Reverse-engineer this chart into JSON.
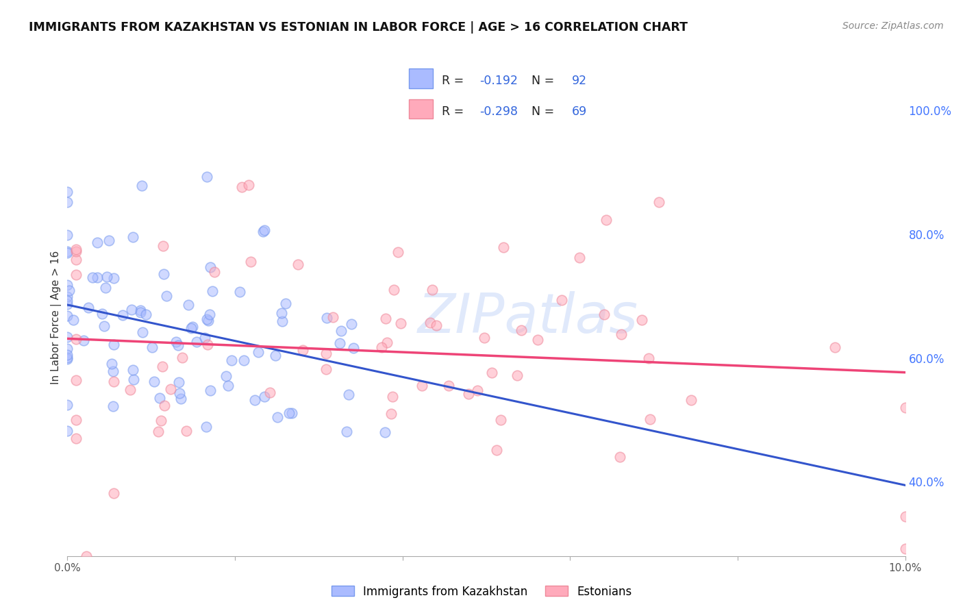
{
  "title": "IMMIGRANTS FROM KAZAKHSTAN VS ESTONIAN IN LABOR FORCE | AGE > 16 CORRELATION CHART",
  "source": "Source: ZipAtlas.com",
  "ylabel_left": "In Labor Force | Age > 16",
  "x_min": 0.0,
  "x_max": 0.1,
  "y_min": 0.28,
  "y_max": 1.05,
  "y_ticks_right": [
    1.0,
    0.8,
    0.6,
    0.4
  ],
  "y_tick_labels_right": [
    "100.0%",
    "80.0%",
    "60.0%",
    "40.0%"
  ],
  "x_tick_positions": [
    0.0,
    0.02,
    0.04,
    0.06,
    0.08,
    0.1
  ],
  "x_tick_labels": [
    "0.0%",
    "",
    "",
    "",
    "",
    "10.0%"
  ],
  "grid_color": "#cccccc",
  "background_color": "#ffffff",
  "blue_fill_color": "#aabbff",
  "blue_edge_color": "#7799ee",
  "pink_fill_color": "#ffaabb",
  "pink_edge_color": "#ee8899",
  "blue_line_color": "#3355cc",
  "pink_line_color": "#ee4477",
  "legend_label_blue": "Immigrants from Kazakhstan",
  "legend_label_pink": "Estonians",
  "R_blue": -0.192,
  "N_blue": 92,
  "R_pink": -0.298,
  "N_pink": 69,
  "watermark": "ZIPatlas",
  "axis_label_color": "#4477ff",
  "title_color": "#111111",
  "source_color": "#888888",
  "legend_text_dark": "#222222",
  "legend_text_blue": "#3366dd"
}
